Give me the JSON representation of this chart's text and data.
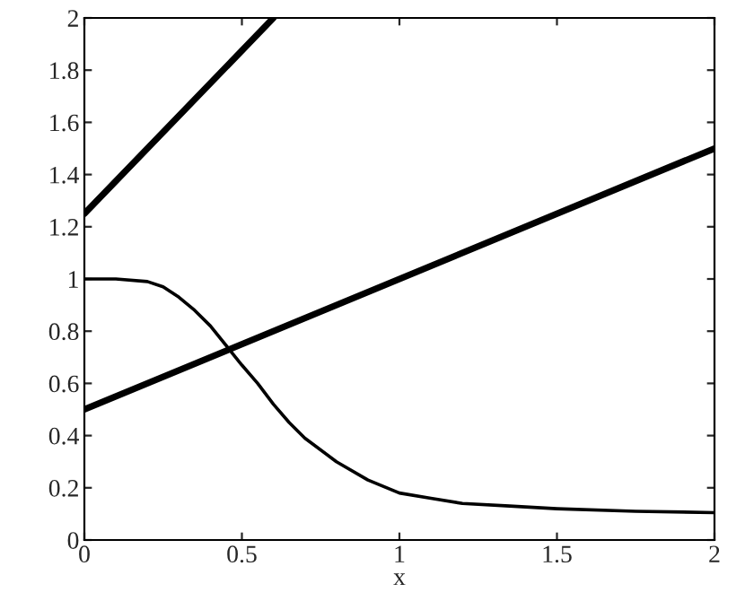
{
  "chart_data": {
    "type": "line",
    "xlabel": "x",
    "series": [
      {
        "color": "#000000",
        "x": [
          0,
          0.6
        ],
        "values": [
          1.25,
          2.0
        ]
      },
      {
        "color": "#000000",
        "x": [
          0,
          2
        ],
        "values": [
          0.5,
          1.5
        ]
      },
      {
        "color": "#000000",
        "x": [
          0,
          0.1,
          0.2,
          0.25,
          0.3,
          0.35,
          0.4,
          0.46,
          0.5,
          0.55,
          0.6,
          0.65,
          0.7,
          0.8,
          0.9,
          1.0,
          1.1,
          1.2,
          1.35,
          1.5,
          1.75,
          2.0
        ],
        "values": [
          1.0,
          1.0,
          0.99,
          0.97,
          0.93,
          0.88,
          0.82,
          0.73,
          0.67,
          0.6,
          0.52,
          0.45,
          0.39,
          0.3,
          0.23,
          0.18,
          0.16,
          0.14,
          0.13,
          0.12,
          0.11,
          0.105
        ]
      }
    ],
    "xlim": [
      0,
      2
    ],
    "xticks": [
      0,
      0.5,
      1,
      1.5,
      2
    ],
    "ylim": [
      0,
      2
    ],
    "yticks": [
      0,
      0.2,
      0.4,
      0.6,
      0.8,
      1,
      1.2,
      1.4,
      1.6,
      1.8,
      2
    ],
    "grid": false,
    "legend": false,
    "marker": "none",
    "line_style": "solid"
  }
}
